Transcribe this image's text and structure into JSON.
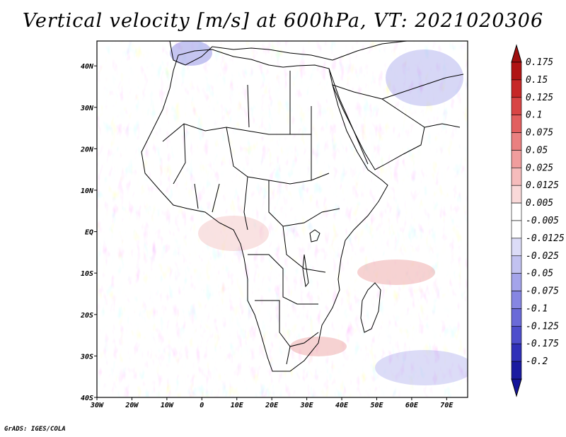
{
  "title": "Vertical velocity [m/s] at 600hPa, VT: 2021020306",
  "credit": "GrADS: IGES/COLA",
  "chart_data": {
    "type": "heatmap",
    "title": "Vertical velocity [m/s] at 600hPa, VT: 2021020306",
    "variable": "Vertical velocity",
    "units": "m/s",
    "level": "600hPa",
    "valid_time": "2021020306",
    "lon_range": [
      -30,
      76
    ],
    "lat_range": [
      -40,
      46
    ],
    "lon_ticks": [
      "30W",
      "20W",
      "10W",
      "0",
      "10E",
      "20E",
      "30E",
      "40E",
      "50E",
      "60E",
      "70E"
    ],
    "lon_tick_values": [
      -30,
      -20,
      -10,
      0,
      10,
      20,
      30,
      40,
      50,
      60,
      70
    ],
    "lat_ticks": [
      "40S",
      "30S",
      "20S",
      "10S",
      "EQ",
      "10N",
      "20N",
      "30N",
      "40N"
    ],
    "lat_tick_values": [
      -40,
      -30,
      -20,
      -10,
      0,
      10,
      20,
      30,
      40
    ],
    "colorbar": {
      "levels": [
        "0.175",
        "0.15",
        "0.125",
        "0.1",
        "0.075",
        "0.05",
        "0.025",
        "0.0125",
        "0.005",
        "-0.005",
        "-0.0125",
        "-0.025",
        "-0.05",
        "-0.075",
        "-0.1",
        "-0.125",
        "-0.175",
        "-0.2"
      ],
      "colors": [
        "#b01414",
        "#c62828",
        "#d84545",
        "#e25f5f",
        "#ea8080",
        "#f09d9d",
        "#f5bcbc",
        "#f9d9d9",
        "#ffffff",
        "#ffffff",
        "#dcdcf7",
        "#c2c2f0",
        "#a4a4ea",
        "#8686e2",
        "#6a6ad8",
        "#4e4ecc",
        "#3030b8",
        "#1a1aa0"
      ],
      "top_color": "#a01010",
      "bottom_color": "#14149a"
    }
  }
}
